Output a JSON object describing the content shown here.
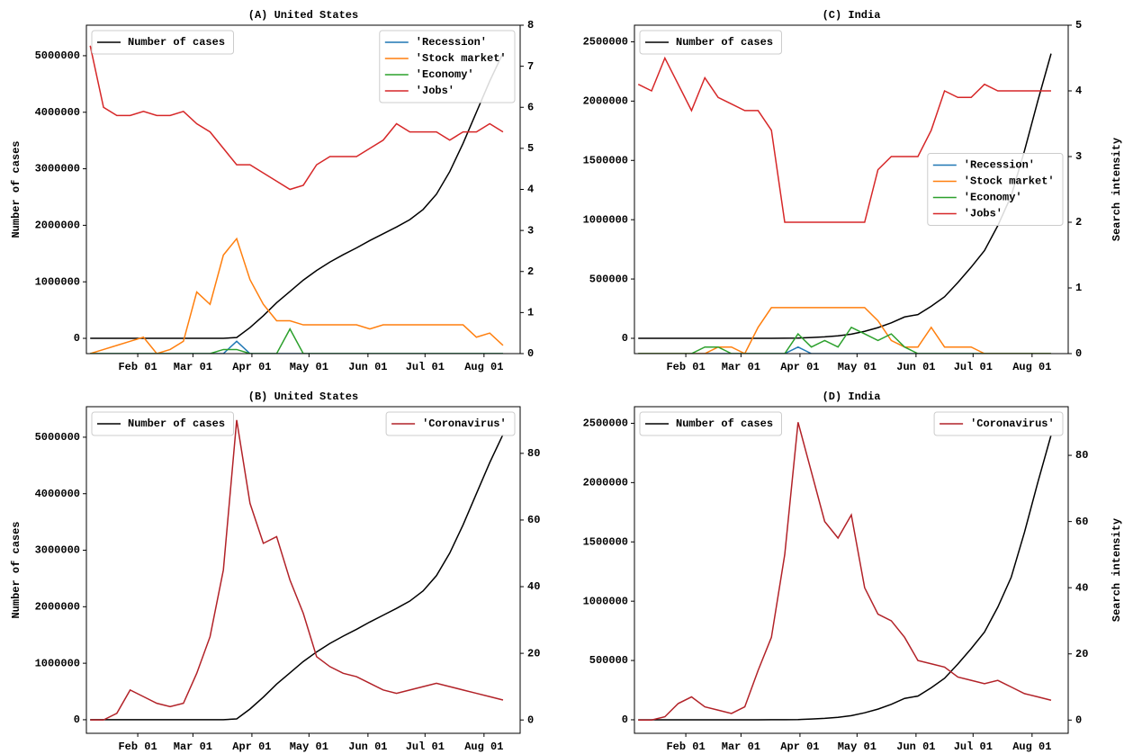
{
  "chart_data": [
    {
      "type": "line",
      "title": "(A) United States",
      "ylabel": "Number of cases",
      "x": [
        6,
        13,
        20,
        27,
        34,
        41,
        48,
        55,
        62,
        69,
        76,
        83,
        90,
        97,
        104,
        111,
        118,
        125,
        132,
        139,
        146,
        153,
        160,
        167,
        174,
        181,
        188,
        195,
        202,
        209,
        216,
        223
      ],
      "xlim": [
        4,
        232
      ],
      "xticks": [
        {
          "value": 31,
          "label": "Feb 01"
        },
        {
          "value": 60,
          "label": "Mar 01"
        },
        {
          "value": 91,
          "label": "Apr 01"
        },
        {
          "value": 121,
          "label": "May 01"
        },
        {
          "value": 152,
          "label": "Jun 01"
        },
        {
          "value": 182,
          "label": "Jul 01"
        },
        {
          "value": 213,
          "label": "Aug 01"
        }
      ],
      "ylim": [
        -270000,
        5540000
      ],
      "yticks": [
        0,
        1000000,
        2000000,
        3000000,
        4000000,
        5000000
      ],
      "y2lim": [
        0,
        8
      ],
      "y2ticks": [
        0,
        1,
        2,
        3,
        4,
        5,
        6,
        7,
        8
      ],
      "legend_loc": "upper left",
      "legend2_loc": "upper right",
      "series": [
        {
          "name": "Number of cases",
          "color": "#000000",
          "values": [
            0,
            0,
            0,
            0,
            0,
            0,
            0,
            0,
            0,
            100,
            1000,
            15000,
            190000,
            400000,
            630000,
            830000,
            1030000,
            1200000,
            1350000,
            1480000,
            1600000,
            1730000,
            1850000,
            1970000,
            2100000,
            2280000,
            2550000,
            2950000,
            3450000,
            4000000,
            4550000,
            5050000
          ]
        },
        {
          "name": "'Recession'",
          "color": "#1f77b4",
          "axis": "y2",
          "values": [
            0,
            0,
            0,
            0,
            0,
            0,
            0,
            0,
            0,
            0,
            0,
            0.3,
            0,
            0,
            0,
            0,
            0,
            0,
            0,
            0,
            0,
            0,
            0,
            0,
            0,
            0,
            0,
            0,
            0,
            0,
            0,
            0
          ]
        },
        {
          "name": "'Stock market'",
          "color": "#ff7f0e",
          "axis": "y2",
          "values": [
            0,
            0.1,
            0.2,
            0.3,
            0.4,
            0,
            0.1,
            0.3,
            1.5,
            1.2,
            2.4,
            2.8,
            1.8,
            1.2,
            0.8,
            0.8,
            0.7,
            0.7,
            0.7,
            0.7,
            0.7,
            0.6,
            0.7,
            0.7,
            0.7,
            0.7,
            0.7,
            0.7,
            0.7,
            0.4,
            0.5,
            0.2
          ]
        },
        {
          "name": "'Economy'",
          "color": "#2ca02c",
          "axis": "y2",
          "values": [
            0,
            0,
            0,
            0,
            0,
            0,
            0,
            0,
            0,
            0,
            0.1,
            0.1,
            0,
            0,
            0,
            0.6,
            0,
            0,
            0,
            0,
            0,
            0,
            0,
            0,
            0,
            0,
            0,
            0,
            0,
            0,
            0,
            0
          ]
        },
        {
          "name": "'Jobs'",
          "color": "#d62728",
          "axis": "y2",
          "values": [
            7.5,
            6,
            5.8,
            5.8,
            5.9,
            5.8,
            5.8,
            5.9,
            5.6,
            5.4,
            5,
            4.6,
            4.6,
            4.4,
            4.2,
            4,
            4.1,
            4.6,
            4.8,
            4.8,
            4.8,
            5,
            5.2,
            5.6,
            5.4,
            5.4,
            5.4,
            5.2,
            5.4,
            5.4,
            5.6,
            5.4
          ]
        }
      ]
    },
    {
      "type": "line",
      "title": "(C) India",
      "y2label": "Search intensity",
      "x": [
        6,
        13,
        20,
        27,
        34,
        41,
        48,
        55,
        62,
        69,
        76,
        83,
        90,
        97,
        104,
        111,
        118,
        125,
        132,
        139,
        146,
        153,
        160,
        167,
        174,
        181,
        188,
        195,
        202,
        209,
        216,
        223
      ],
      "xlim": [
        4,
        232
      ],
      "xticks": [
        {
          "value": 31,
          "label": "Feb 01"
        },
        {
          "value": 60,
          "label": "Mar 01"
        },
        {
          "value": 91,
          "label": "Apr 01"
        },
        {
          "value": 121,
          "label": "May 01"
        },
        {
          "value": 152,
          "label": "Jun 01"
        },
        {
          "value": 182,
          "label": "Jul 01"
        },
        {
          "value": 213,
          "label": "Aug 01"
        }
      ],
      "ylim": [
        -129000,
        2640000
      ],
      "yticks": [
        0,
        500000,
        1000000,
        1500000,
        2000000,
        2500000
      ],
      "y2lim": [
        0,
        5
      ],
      "y2ticks": [
        0,
        1,
        2,
        3,
        4,
        5
      ],
      "legend_loc": "upper left",
      "legend2_loc": "center right",
      "series": [
        {
          "name": "Number of cases",
          "color": "#000000",
          "values": [
            0,
            0,
            0,
            0,
            0,
            0,
            0,
            0,
            0,
            0,
            300,
            700,
            1800,
            6700,
            12000,
            21000,
            35000,
            59000,
            90000,
            130000,
            180000,
            200000,
            270000,
            350000,
            470000,
            600000,
            740000,
            950000,
            1200000,
            1580000,
            2000000,
            2400000
          ]
        },
        {
          "name": "'Recession'",
          "color": "#1f77b4",
          "axis": "y2",
          "values": [
            0,
            0,
            0,
            0,
            0,
            0,
            0,
            0,
            0,
            0,
            0,
            0,
            0.1,
            0,
            0,
            0,
            0,
            0,
            0,
            0,
            0,
            0,
            0,
            0,
            0,
            0,
            0,
            0,
            0,
            0,
            0,
            0
          ]
        },
        {
          "name": "'Stock market'",
          "color": "#ff7f0e",
          "axis": "y2",
          "values": [
            0,
            0,
            0,
            0,
            0,
            0,
            0.1,
            0.1,
            0,
            0.4,
            0.7,
            0.7,
            0.7,
            0.7,
            0.7,
            0.7,
            0.7,
            0.7,
            0.5,
            0.2,
            0.1,
            0.1,
            0.4,
            0.1,
            0.1,
            0.1,
            0,
            0,
            0,
            0,
            0,
            0
          ]
        },
        {
          "name": "'Economy'",
          "color": "#2ca02c",
          "axis": "y2",
          "values": [
            0,
            0,
            0,
            0,
            0,
            0.1,
            0.1,
            0,
            0,
            0,
            0,
            0,
            0.3,
            0.1,
            0.2,
            0.1,
            0.4,
            0.3,
            0.2,
            0.3,
            0.1,
            0,
            0,
            0,
            0,
            0,
            0,
            0,
            0,
            0,
            0,
            0
          ]
        },
        {
          "name": "'Jobs'",
          "color": "#d62728",
          "axis": "y2",
          "values": [
            4.1,
            4,
            4.5,
            4.1,
            3.7,
            4.2,
            3.9,
            3.8,
            3.7,
            3.7,
            3.4,
            2,
            2,
            2,
            2,
            2,
            2,
            2,
            2.8,
            3,
            3,
            3,
            3.4,
            4,
            3.9,
            3.9,
            4.1,
            4,
            4,
            4,
            4,
            4
          ]
        }
      ]
    },
    {
      "type": "line",
      "title": "(B) United States",
      "ylabel": "Number of cases",
      "x": [
        6,
        13,
        20,
        27,
        34,
        41,
        48,
        55,
        62,
        69,
        76,
        83,
        90,
        97,
        104,
        111,
        118,
        125,
        132,
        139,
        146,
        153,
        160,
        167,
        174,
        181,
        188,
        195,
        202,
        209,
        216,
        223
      ],
      "xlim": [
        4,
        232
      ],
      "xticks": [
        {
          "value": 31,
          "label": "Feb 01"
        },
        {
          "value": 60,
          "label": "Mar 01"
        },
        {
          "value": 91,
          "label": "Apr 01"
        },
        {
          "value": 121,
          "label": "May 01"
        },
        {
          "value": 152,
          "label": "Jun 01"
        },
        {
          "value": 182,
          "label": "Jul 01"
        },
        {
          "value": 213,
          "label": "Aug 01"
        }
      ],
      "ylim": [
        -240000,
        5540000
      ],
      "yticks": [
        0,
        1000000,
        2000000,
        3000000,
        4000000,
        5000000
      ],
      "y2lim": [
        -4,
        94
      ],
      "y2ticks": [
        0,
        20,
        40,
        60,
        80
      ],
      "legend_loc": "upper left",
      "legend2_loc": "upper right",
      "series": [
        {
          "name": "Number of cases",
          "color": "#000000",
          "values": [
            0,
            0,
            0,
            0,
            0,
            0,
            0,
            0,
            0,
            100,
            1000,
            15000,
            190000,
            400000,
            630000,
            830000,
            1030000,
            1200000,
            1350000,
            1480000,
            1600000,
            1730000,
            1850000,
            1970000,
            2100000,
            2280000,
            2550000,
            2950000,
            3450000,
            4000000,
            4550000,
            5050000
          ]
        },
        {
          "name": "'Coronavirus'",
          "color": "#b22228",
          "axis": "y2",
          "values": [
            0,
            0,
            2,
            9,
            7,
            5,
            4,
            5,
            14,
            25,
            45,
            90,
            65,
            53,
            55,
            42,
            32,
            19,
            16,
            14,
            13,
            11,
            9,
            8,
            9,
            10,
            11,
            10,
            9,
            8,
            7,
            6
          ]
        }
      ]
    },
    {
      "type": "line",
      "title": "(D) India",
      "y2label": "Search intensity",
      "x": [
        6,
        13,
        20,
        27,
        34,
        41,
        48,
        55,
        62,
        69,
        76,
        83,
        90,
        97,
        104,
        111,
        118,
        125,
        132,
        139,
        146,
        153,
        160,
        167,
        174,
        181,
        188,
        195,
        202,
        209,
        216,
        223
      ],
      "xlim": [
        4,
        232
      ],
      "xticks": [
        {
          "value": 31,
          "label": "Feb 01"
        },
        {
          "value": 60,
          "label": "Mar 01"
        },
        {
          "value": 91,
          "label": "Apr 01"
        },
        {
          "value": 121,
          "label": "May 01"
        },
        {
          "value": 152,
          "label": "Jun 01"
        },
        {
          "value": 182,
          "label": "Jul 01"
        },
        {
          "value": 213,
          "label": "Aug 01"
        }
      ],
      "ylim": [
        -114000,
        2640000
      ],
      "yticks": [
        0,
        500000,
        1000000,
        1500000,
        2000000,
        2500000
      ],
      "y2lim": [
        -4,
        94.7
      ],
      "y2ticks": [
        0,
        20,
        40,
        60,
        80
      ],
      "legend_loc": "upper left",
      "legend2_loc": "upper right",
      "series": [
        {
          "name": "Number of cases",
          "color": "#000000",
          "values": [
            0,
            0,
            0,
            0,
            0,
            0,
            0,
            0,
            0,
            0,
            300,
            700,
            1800,
            6700,
            12000,
            21000,
            35000,
            59000,
            90000,
            130000,
            180000,
            200000,
            270000,
            350000,
            470000,
            600000,
            740000,
            950000,
            1200000,
            1580000,
            2000000,
            2400000
          ]
        },
        {
          "name": "'Coronavirus'",
          "color": "#b22228",
          "axis": "y2",
          "values": [
            0,
            0,
            1,
            5,
            7,
            4,
            3,
            2,
            4,
            15,
            25,
            50,
            90,
            75,
            60,
            55,
            62,
            40,
            32,
            30,
            25,
            18,
            17,
            16,
            13,
            12,
            11,
            12,
            10,
            8,
            7,
            6
          ]
        }
      ]
    }
  ]
}
